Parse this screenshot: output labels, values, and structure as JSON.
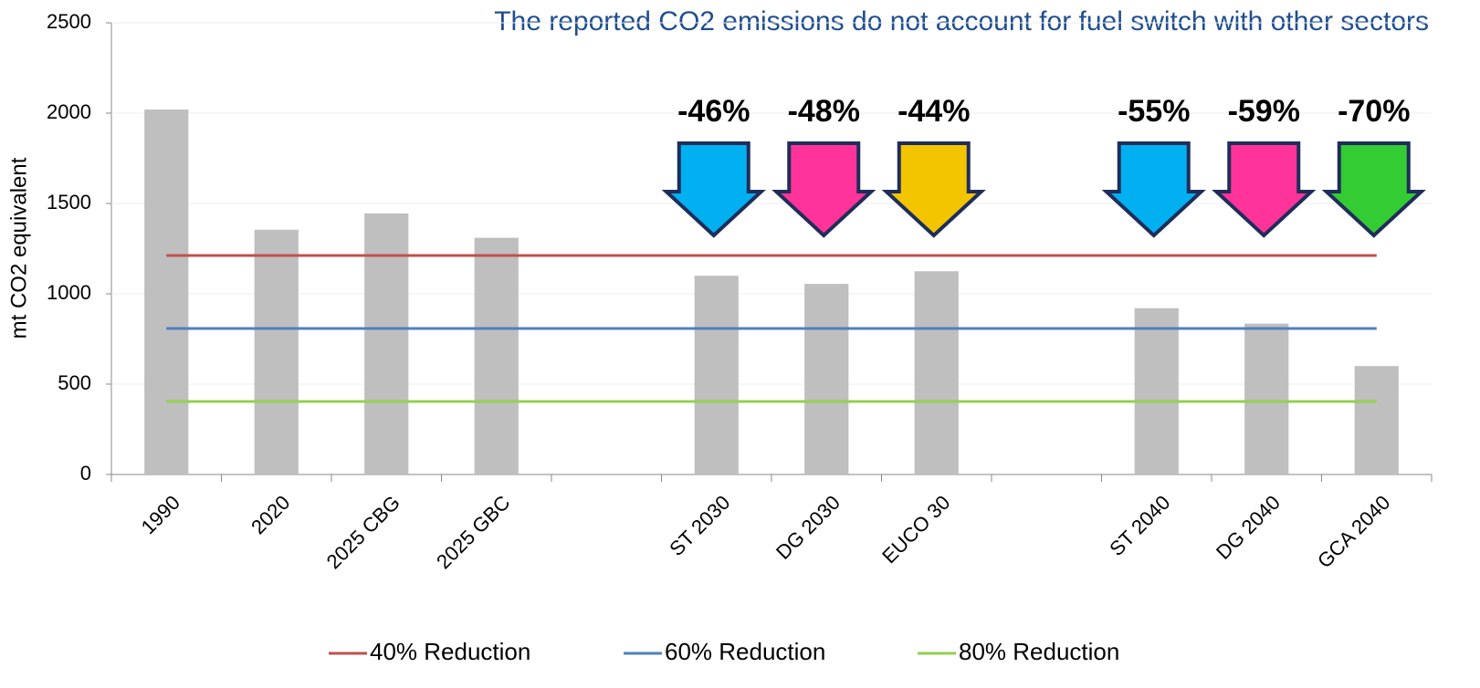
{
  "chart_data": {
    "type": "bar",
    "title": "The reported CO2 emissions do not account for fuel switch with other sectors",
    "y_label": "mt CO2 equivalent",
    "categories": [
      "1990",
      "2020",
      "2025 CBG",
      "2025 GBC",
      null,
      "ST 2030",
      "DG 2030",
      "EUCO 30",
      null,
      "ST 2040",
      "DG 2040",
      "GCA 2040"
    ],
    "values": [
      2020,
      1355,
      1445,
      1310,
      null,
      1100,
      1055,
      1125,
      null,
      920,
      835,
      600
    ],
    "color": "#bfbfbf",
    "ylim": [
      0,
      2500
    ],
    "yticks": [
      0,
      500,
      1000,
      1500,
      2000,
      2500
    ],
    "lines": [
      {
        "name": "40% Reduction",
        "color": "#c0504d",
        "value": 1212
      },
      {
        "name": "60% Reduction",
        "color": "#4f81bd",
        "value": 808
      },
      {
        "name": "80% Reduction",
        "color": "#92d050",
        "value": 404
      }
    ],
    "annotations": [
      {
        "category": "ST 2030",
        "label": "-46%",
        "color": "#00b0f0"
      },
      {
        "category": "DG 2030",
        "label": "-48%",
        "color": "#ff3399"
      },
      {
        "category": "EUCO 30",
        "label": "-44%",
        "color": "#f2c500"
      },
      {
        "category": "ST 2040",
        "label": "-55%",
        "color": "#00b0f0"
      },
      {
        "category": "DG 2040",
        "label": "-59%",
        "color": "#ff3399"
      },
      {
        "category": "GCA 2040",
        "label": "-70%",
        "color": "#33cc33"
      }
    ],
    "legend": "bottom"
  }
}
